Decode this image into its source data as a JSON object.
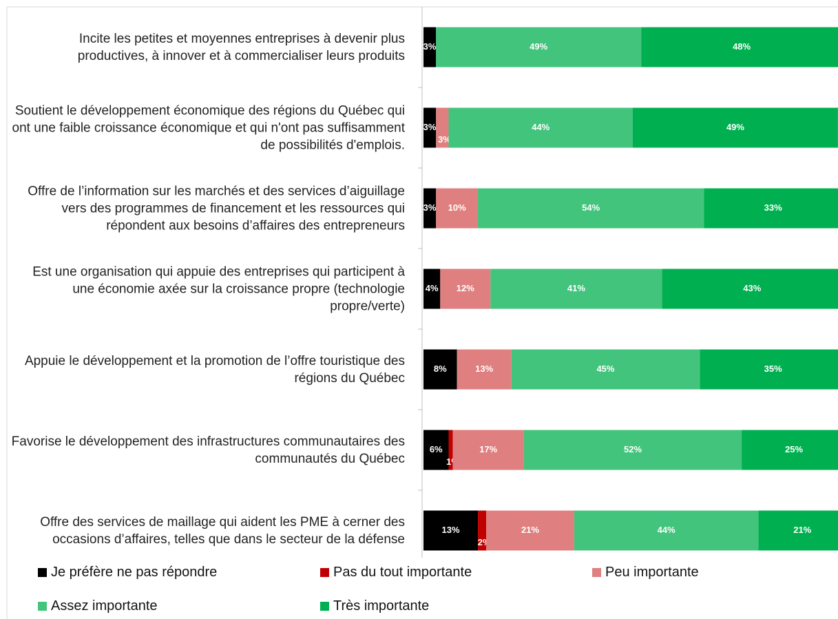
{
  "chart_data": {
    "type": "stacked_bar_horizontal",
    "categories": [
      "Incite les petites et moyennes entreprises à devenir plus productives, à innover et à commercialiser leurs produits",
      "Soutient le développement économique des régions du Québec qui ont une faible croissance économique et qui n'ont pas suffisamment de possibilités d'emplois.",
      "Offre de l’information sur les marchés et des services d’aiguillage vers des programmes de financement et les ressources qui répondent aux besoins d’affaires des entrepreneurs",
      "Est une organisation qui appuie des entreprises qui participent à une économie axée sur la croissance propre (technologie propre/verte)",
      "Appuie le développement et la promotion de l’offre touristique des régions du Québec",
      "Favorise le développement des infrastructures communautaires des communautés du Québec",
      "Offre des services de maillage qui aident les PME à cerner des occasions d’affaires, telles que dans le secteur de la défense"
    ],
    "series": [
      {
        "name": "Je préfère ne pas répondre",
        "color": "#000000",
        "values": [
          3,
          3,
          3,
          4,
          8,
          6,
          13
        ],
        "value_labels": [
          "3%",
          "3%",
          "3%",
          "4%",
          "8%",
          "6%",
          "13%"
        ]
      },
      {
        "name": "Pas du tout importante",
        "color": "#c00000",
        "values": [
          null,
          null,
          null,
          null,
          null,
          1,
          2
        ],
        "value_labels": [
          null,
          null,
          null,
          null,
          null,
          "1%",
          "2%"
        ]
      },
      {
        "name": "Peu importante",
        "color": "#e07f7f",
        "values": [
          null,
          3,
          10,
          12,
          13,
          17,
          21
        ],
        "value_labels": [
          null,
          "3%",
          "10%",
          "12%",
          "13%",
          "17%",
          "21%"
        ]
      },
      {
        "name": "Assez importante",
        "color": "#43c47c",
        "values": [
          49,
          44,
          54,
          41,
          45,
          52,
          44
        ],
        "value_labels": [
          "49%",
          "44%",
          "54%",
          "41%",
          "45%",
          "52%",
          "44%"
        ]
      },
      {
        "name": "Très importante",
        "color": "#00b050",
        "values": [
          48,
          49,
          33,
          43,
          35,
          25,
          21
        ],
        "value_labels": [
          "48%",
          "49%",
          "33%",
          "43%",
          "35%",
          "25%",
          "21%"
        ]
      }
    ],
    "xlim": [
      0,
      100
    ]
  }
}
